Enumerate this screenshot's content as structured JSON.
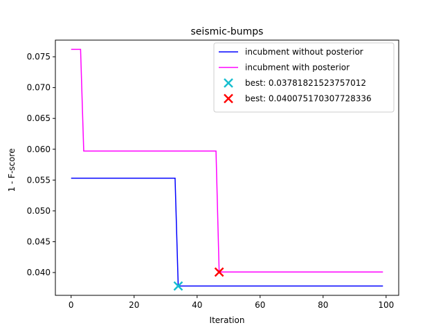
{
  "chart_data": {
    "type": "line",
    "title": "seismic-bumps",
    "xlabel": "Iteration",
    "ylabel": "1 - F-score",
    "xlim": [
      -5,
      104
    ],
    "ylim": [
      0.0363,
      0.0777
    ],
    "xticks": [
      0,
      20,
      40,
      60,
      80,
      100
    ],
    "yticks": [
      0.04,
      0.045,
      0.05,
      0.055,
      0.06,
      0.065,
      0.07,
      0.075
    ],
    "ytick_labels": [
      "0.040",
      "0.045",
      "0.050",
      "0.055",
      "0.060",
      "0.065",
      "0.070",
      "0.075"
    ],
    "grid": false,
    "legend_position": "top-right",
    "series": [
      {
        "name": "incubment without posterior",
        "color": "#0000ff",
        "x": [
          0,
          33,
          34,
          99
        ],
        "y": [
          0.0553,
          0.0553,
          0.03782,
          0.03782
        ]
      },
      {
        "name": "incubment with posterior",
        "color": "#ff00ff",
        "x": [
          0,
          3,
          4,
          46,
          47,
          99
        ],
        "y": [
          0.0762,
          0.0762,
          0.0597,
          0.0597,
          0.04008,
          0.04008
        ]
      }
    ],
    "markers": [
      {
        "name": "best: 0.03781821523757012",
        "x": 34,
        "y": 0.03781821523757012,
        "color": "#17becf"
      },
      {
        "name": "best: 0.040075170307728336",
        "x": 47,
        "y": 0.040075170307728336,
        "color": "#ff0000"
      }
    ]
  }
}
